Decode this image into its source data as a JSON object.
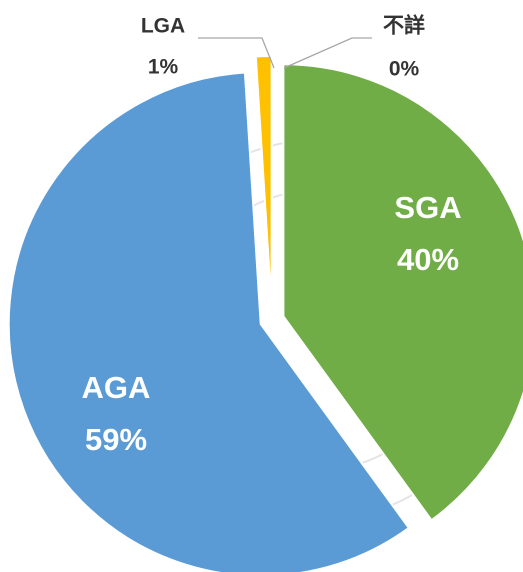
{
  "chart_data": {
    "type": "pie",
    "categories": [
      "SGA",
      "AGA",
      "LGA",
      "不詳"
    ],
    "values": [
      40,
      59,
      1,
      0
    ],
    "value_labels": [
      "40%",
      "59%",
      "1%",
      "0%"
    ],
    "colors": [
      "#70ad47",
      "#5b9bd5",
      "#ffc000",
      "#a5a5a5"
    ]
  }
}
